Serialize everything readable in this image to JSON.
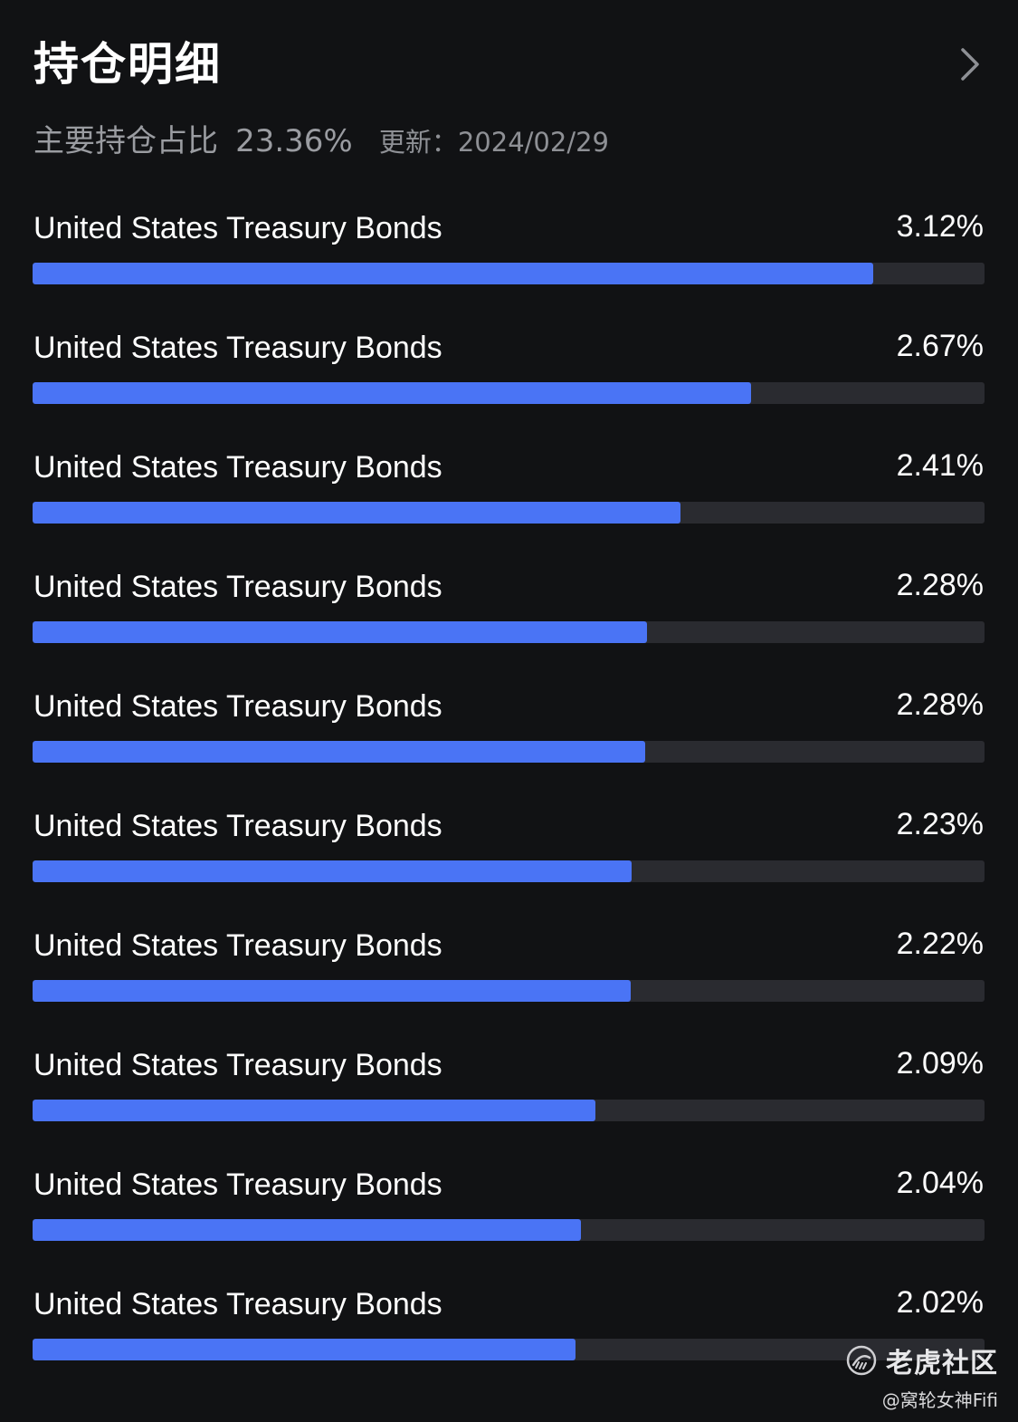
{
  "header": {
    "title": "持仓明细",
    "chevron_icon": "chevron-right-icon"
  },
  "summary": {
    "label": "主要持仓占比",
    "value": "23.36%",
    "update_label": "更新：2024/02/29"
  },
  "colors": {
    "background": "#111214",
    "bar_fill": "#4a74f5",
    "bar_track": "#2a2b30"
  },
  "holdings": [
    {
      "name": "United States Treasury Bonds",
      "percent_label": "3.12%",
      "percent": 3.12,
      "bar_fraction": 0.883
    },
    {
      "name": "United States Treasury Bonds",
      "percent_label": "2.67%",
      "percent": 2.67,
      "bar_fraction": 0.755
    },
    {
      "name": "United States Treasury Bonds",
      "percent_label": "2.41%",
      "percent": 2.41,
      "bar_fraction": 0.681
    },
    {
      "name": "United States Treasury Bonds",
      "percent_label": "2.28%",
      "percent": 2.28,
      "bar_fraction": 0.645
    },
    {
      "name": "United States Treasury Bonds",
      "percent_label": "2.28%",
      "percent": 2.28,
      "bar_fraction": 0.644
    },
    {
      "name": "United States Treasury Bonds",
      "percent_label": "2.23%",
      "percent": 2.23,
      "bar_fraction": 0.629
    },
    {
      "name": "United States Treasury Bonds",
      "percent_label": "2.22%",
      "percent": 2.22,
      "bar_fraction": 0.628
    },
    {
      "name": "United States Treasury Bonds",
      "percent_label": "2.09%",
      "percent": 2.09,
      "bar_fraction": 0.591
    },
    {
      "name": "United States Treasury Bonds",
      "percent_label": "2.04%",
      "percent": 2.04,
      "bar_fraction": 0.576
    },
    {
      "name": "United States Treasury Bonds",
      "percent_label": "2.02%",
      "percent": 2.02,
      "bar_fraction": 0.57
    }
  ],
  "watermark": {
    "brand": "老虎社区",
    "user": "@窝轮女神Fifi"
  }
}
